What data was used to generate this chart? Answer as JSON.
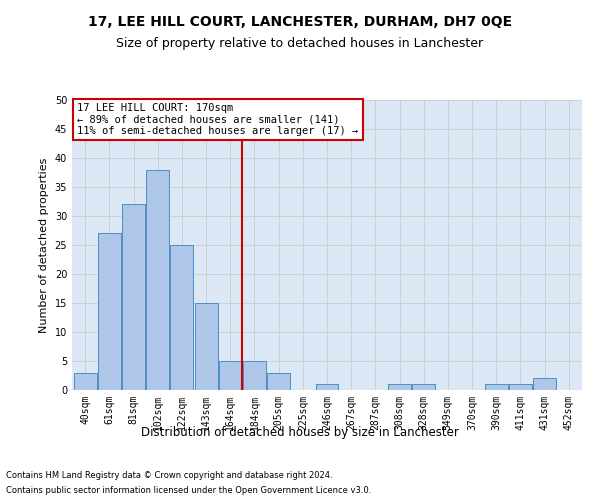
{
  "title": "17, LEE HILL COURT, LANCHESTER, DURHAM, DH7 0QE",
  "subtitle": "Size of property relative to detached houses in Lanchester",
  "xlabel": "Distribution of detached houses by size in Lanchester",
  "ylabel": "Number of detached properties",
  "bar_values": [
    3,
    27,
    32,
    38,
    25,
    15,
    5,
    5,
    3,
    0,
    1,
    0,
    0,
    1,
    1,
    0,
    0,
    1,
    1,
    2,
    0
  ],
  "categories": [
    "40sqm",
    "61sqm",
    "81sqm",
    "102sqm",
    "122sqm",
    "143sqm",
    "164sqm",
    "184sqm",
    "205sqm",
    "225sqm",
    "246sqm",
    "267sqm",
    "287sqm",
    "308sqm",
    "328sqm",
    "349sqm",
    "370sqm",
    "390sqm",
    "411sqm",
    "431sqm",
    "452sqm"
  ],
  "bar_color": "#aec6e8",
  "bar_edge_color": "#4c90c0",
  "red_line_x": 6.5,
  "annotation_text": "17 LEE HILL COURT: 170sqm\n← 89% of detached houses are smaller (141)\n11% of semi-detached houses are larger (17) →",
  "annotation_box_color": "#ffffff",
  "annotation_box_edge_color": "#cc0000",
  "ylim": [
    0,
    50
  ],
  "yticks": [
    0,
    5,
    10,
    15,
    20,
    25,
    30,
    35,
    40,
    45,
    50
  ],
  "grid_color": "#cccccc",
  "background_color": "#dce8f5",
  "footer_line1": "Contains HM Land Registry data © Crown copyright and database right 2024.",
  "footer_line2": "Contains public sector information licensed under the Open Government Licence v3.0.",
  "title_fontsize": 10,
  "subtitle_fontsize": 9,
  "red_line_color": "#cc0000",
  "annot_fontsize": 7.5,
  "ylabel_fontsize": 8,
  "xlabel_fontsize": 8.5,
  "tick_fontsize": 7
}
